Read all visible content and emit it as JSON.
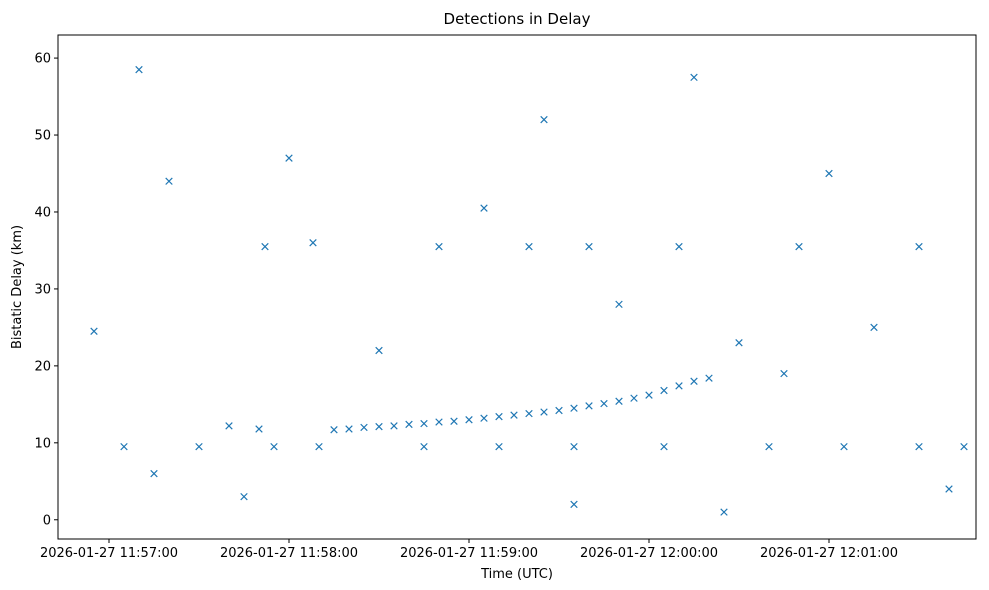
{
  "chart_data": {
    "type": "scatter",
    "title": "Detections in Delay",
    "xlabel": "Time (UTC)",
    "ylabel": "Bistatic Delay (km)",
    "x_axis_type": "datetime",
    "xlim": [
      "2026-01-27 11:56:43",
      "2026-01-27 12:01:49"
    ],
    "ylim": [
      -2.5,
      63
    ],
    "xticks": [
      "2026-01-27 11:57:00",
      "2026-01-27 11:58:00",
      "2026-01-27 11:59:00",
      "2026-01-27 12:00:00",
      "2026-01-27 12:01:00"
    ],
    "xtick_labels": [
      "2026-01-27 11:57:00",
      "2026-01-27 11:58:00",
      "2026-01-27 11:59:00",
      "2026-01-27 12:00:00",
      "2026-01-27 12:01:00"
    ],
    "yticks": [
      0,
      10,
      20,
      30,
      40,
      50,
      60
    ],
    "ytick_labels": [
      "0",
      "10",
      "20",
      "30",
      "40",
      "50",
      "60"
    ],
    "grid": false,
    "legend": "none",
    "marker": "x",
    "marker_color": "#1f77b4",
    "series": [
      {
        "points": [
          [
            "2026-01-27 11:58:15",
            11.7
          ],
          [
            "2026-01-27 11:58:20",
            11.8
          ],
          [
            "2026-01-27 11:58:25",
            12.0
          ],
          [
            "2026-01-27 11:58:30",
            12.1
          ],
          [
            "2026-01-27 11:58:35",
            12.2
          ],
          [
            "2026-01-27 11:58:40",
            12.4
          ],
          [
            "2026-01-27 11:58:45",
            12.5
          ],
          [
            "2026-01-27 11:58:50",
            12.7
          ],
          [
            "2026-01-27 11:58:55",
            12.8
          ],
          [
            "2026-01-27 11:59:00",
            13.0
          ],
          [
            "2026-01-27 11:59:05",
            13.2
          ],
          [
            "2026-01-27 11:59:10",
            13.4
          ],
          [
            "2026-01-27 11:59:15",
            13.6
          ],
          [
            "2026-01-27 11:59:20",
            13.8
          ],
          [
            "2026-01-27 11:59:25",
            14.0
          ],
          [
            "2026-01-27 11:59:30",
            14.2
          ],
          [
            "2026-01-27 11:59:35",
            14.5
          ],
          [
            "2026-01-27 11:59:40",
            14.8
          ],
          [
            "2026-01-27 11:59:45",
            15.1
          ],
          [
            "2026-01-27 11:59:50",
            15.4
          ],
          [
            "2026-01-27 11:59:55",
            15.8
          ],
          [
            "2026-01-27 12:00:00",
            16.2
          ],
          [
            "2026-01-27 12:00:05",
            16.8
          ],
          [
            "2026-01-27 12:00:10",
            17.4
          ],
          [
            "2026-01-27 12:00:15",
            18.0
          ],
          [
            "2026-01-27 12:00:20",
            18.4
          ],
          [
            "2026-01-27 11:57:05",
            9.5
          ],
          [
            "2026-01-27 11:57:30",
            9.5
          ],
          [
            "2026-01-27 11:57:55",
            9.5
          ],
          [
            "2026-01-27 11:58:10",
            9.5
          ],
          [
            "2026-01-27 11:58:45",
            9.5
          ],
          [
            "2026-01-27 11:59:10",
            9.5
          ],
          [
            "2026-01-27 11:59:35",
            9.5
          ],
          [
            "2026-01-27 12:00:05",
            9.5
          ],
          [
            "2026-01-27 12:00:40",
            9.5
          ],
          [
            "2026-01-27 12:01:05",
            9.5
          ],
          [
            "2026-01-27 12:01:30",
            9.5
          ],
          [
            "2026-01-27 12:01:45",
            9.5
          ],
          [
            "2026-01-27 11:57:40",
            12.2
          ],
          [
            "2026-01-27 11:57:50",
            11.8
          ],
          [
            "2026-01-27 11:57:52",
            35.5
          ],
          [
            "2026-01-27 11:58:08",
            36.0
          ],
          [
            "2026-01-27 11:58:50",
            35.5
          ],
          [
            "2026-01-27 11:59:20",
            35.5
          ],
          [
            "2026-01-27 11:59:40",
            35.5
          ],
          [
            "2026-01-27 12:00:10",
            35.5
          ],
          [
            "2026-01-27 12:00:50",
            35.5
          ],
          [
            "2026-01-27 12:01:30",
            35.5
          ],
          [
            "2026-01-27 11:56:55",
            24.5
          ],
          [
            "2026-01-27 11:57:10",
            58.5
          ],
          [
            "2026-01-27 11:57:15",
            6.0
          ],
          [
            "2026-01-27 11:57:20",
            44.0
          ],
          [
            "2026-01-27 11:57:45",
            3.0
          ],
          [
            "2026-01-27 11:58:00",
            47.0
          ],
          [
            "2026-01-27 11:58:30",
            22.0
          ],
          [
            "2026-01-27 11:59:05",
            40.5
          ],
          [
            "2026-01-27 11:59:25",
            52.0
          ],
          [
            "2026-01-27 11:59:50",
            28.0
          ],
          [
            "2026-01-27 12:00:15",
            57.5
          ],
          [
            "2026-01-27 12:00:30",
            23.0
          ],
          [
            "2026-01-27 12:00:45",
            19.0
          ],
          [
            "2026-01-27 12:01:00",
            45.0
          ],
          [
            "2026-01-27 12:01:15",
            25.0
          ],
          [
            "2026-01-27 12:01:40",
            4.0
          ],
          [
            "2026-01-27 12:00:25",
            1.0
          ],
          [
            "2026-01-27 11:59:35",
            2.0
          ]
        ]
      }
    ]
  }
}
